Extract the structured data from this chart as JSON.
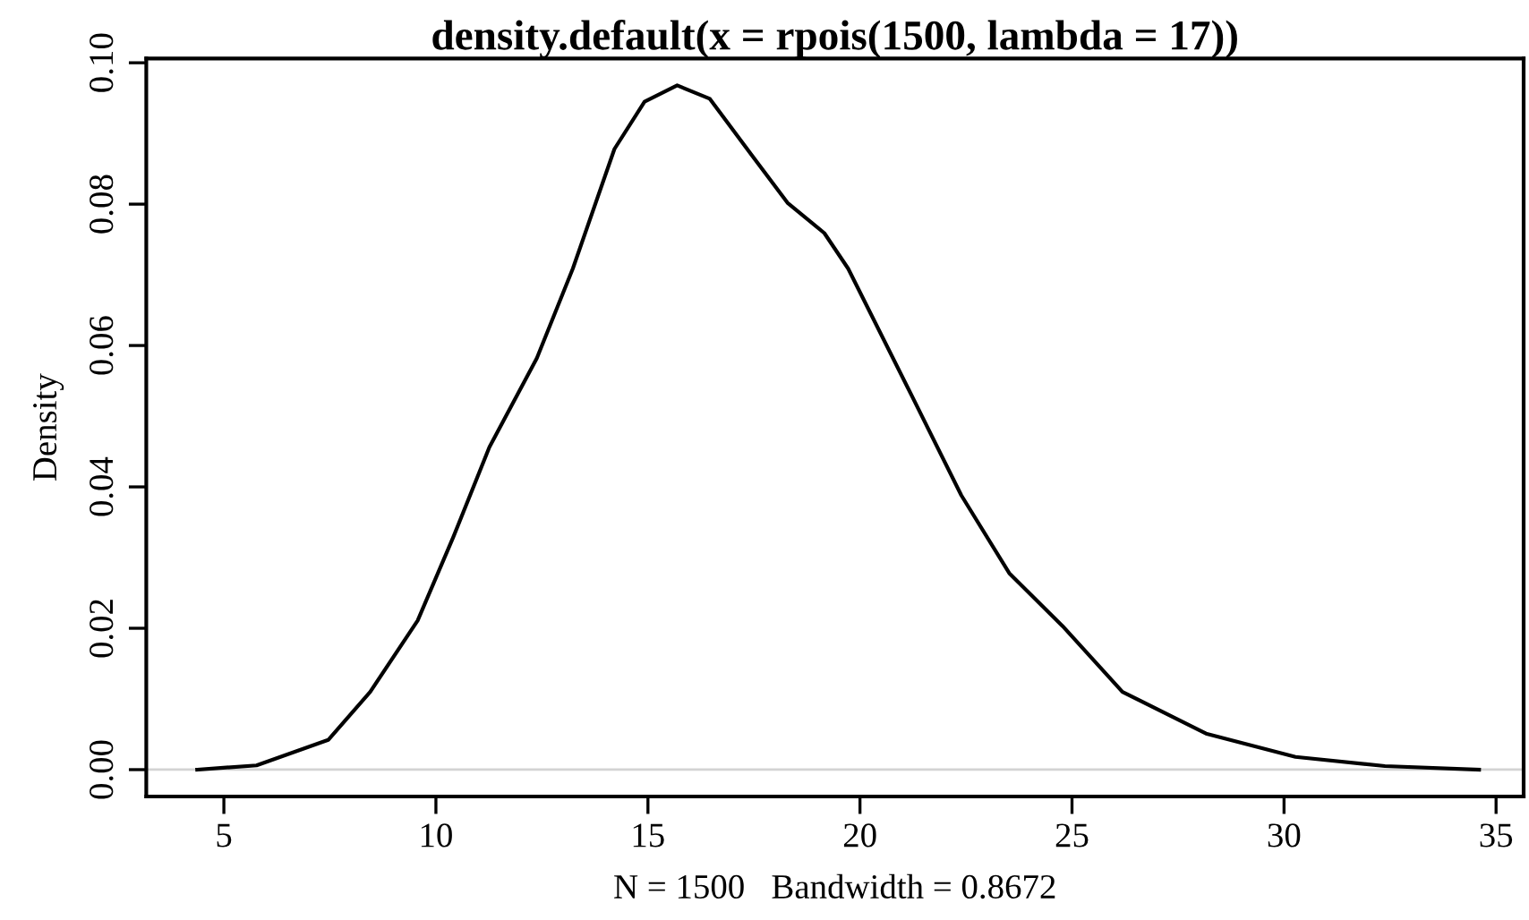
{
  "chart_data": {
    "type": "line",
    "title": "density.default(x = rpois(1500, lambda = 17))",
    "xlabel": "N = 1500   Bandwidth = 0.8672",
    "ylabel": "Density",
    "series": [
      {
        "color": "#000000",
        "x": [
          4.37,
          5.77,
          7.46,
          8.45,
          9.57,
          10.41,
          11.26,
          12.38,
          13.23,
          14.21,
          14.92,
          15.69,
          16.46,
          17.45,
          18.29,
          19.16,
          19.72,
          21.13,
          22.39,
          23.52,
          24.78,
          26.19,
          28.16,
          30.27,
          32.38,
          34.6
        ],
        "values": [
          0.0,
          0.0006,
          0.0042,
          0.011,
          0.0211,
          0.0329,
          0.0456,
          0.0582,
          0.0709,
          0.0878,
          0.0945,
          0.0968,
          0.0949,
          0.0869,
          0.0802,
          0.0759,
          0.0709,
          0.054,
          0.0388,
          0.0278,
          0.0203,
          0.011,
          0.0051,
          0.0018,
          0.0005,
          0.0
        ]
      }
    ],
    "xlim": [
      3.17,
      35.65
    ],
    "ylim": [
      -0.0038,
      0.1006
    ],
    "xticks": [
      5,
      10,
      15,
      20,
      25,
      30,
      35
    ],
    "yticks": [
      {
        "value": 0,
        "label": "0.00"
      },
      {
        "value": 0.02,
        "label": "0.02"
      },
      {
        "value": 0.04,
        "label": "0.04"
      },
      {
        "value": 0.06,
        "label": "0.06"
      },
      {
        "value": 0.08,
        "label": "0.08"
      },
      {
        "value": 0.1,
        "label": "0.10"
      }
    ],
    "ref_lines": [
      {
        "axis": "y",
        "value": 0,
        "color": "#d3d3d3"
      }
    ],
    "grid": false,
    "legend": false,
    "marker": "none",
    "line_style": "solid"
  }
}
